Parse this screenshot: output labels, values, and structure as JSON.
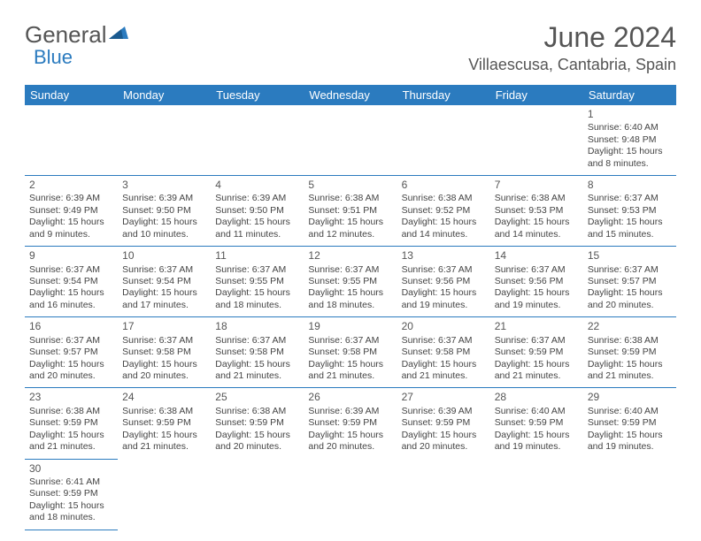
{
  "logo": {
    "text1": "General",
    "text2": "Blue"
  },
  "title": "June 2024",
  "location": "Villaescusa, Cantabria, Spain",
  "colors": {
    "accent": "#2b7bbf",
    "text": "#444",
    "heading": "#555",
    "bg": "#ffffff"
  },
  "daysOfWeek": [
    "Sunday",
    "Monday",
    "Tuesday",
    "Wednesday",
    "Thursday",
    "Friday",
    "Saturday"
  ],
  "startOffset": 6,
  "days": [
    {
      "n": 1,
      "sunrise": "6:40 AM",
      "sunset": "9:48 PM",
      "daylight": "15 hours and 8 minutes."
    },
    {
      "n": 2,
      "sunrise": "6:39 AM",
      "sunset": "9:49 PM",
      "daylight": "15 hours and 9 minutes."
    },
    {
      "n": 3,
      "sunrise": "6:39 AM",
      "sunset": "9:50 PM",
      "daylight": "15 hours and 10 minutes."
    },
    {
      "n": 4,
      "sunrise": "6:39 AM",
      "sunset": "9:50 PM",
      "daylight": "15 hours and 11 minutes."
    },
    {
      "n": 5,
      "sunrise": "6:38 AM",
      "sunset": "9:51 PM",
      "daylight": "15 hours and 12 minutes."
    },
    {
      "n": 6,
      "sunrise": "6:38 AM",
      "sunset": "9:52 PM",
      "daylight": "15 hours and 14 minutes."
    },
    {
      "n": 7,
      "sunrise": "6:38 AM",
      "sunset": "9:53 PM",
      "daylight": "15 hours and 14 minutes."
    },
    {
      "n": 8,
      "sunrise": "6:37 AM",
      "sunset": "9:53 PM",
      "daylight": "15 hours and 15 minutes."
    },
    {
      "n": 9,
      "sunrise": "6:37 AM",
      "sunset": "9:54 PM",
      "daylight": "15 hours and 16 minutes."
    },
    {
      "n": 10,
      "sunrise": "6:37 AM",
      "sunset": "9:54 PM",
      "daylight": "15 hours and 17 minutes."
    },
    {
      "n": 11,
      "sunrise": "6:37 AM",
      "sunset": "9:55 PM",
      "daylight": "15 hours and 18 minutes."
    },
    {
      "n": 12,
      "sunrise": "6:37 AM",
      "sunset": "9:55 PM",
      "daylight": "15 hours and 18 minutes."
    },
    {
      "n": 13,
      "sunrise": "6:37 AM",
      "sunset": "9:56 PM",
      "daylight": "15 hours and 19 minutes."
    },
    {
      "n": 14,
      "sunrise": "6:37 AM",
      "sunset": "9:56 PM",
      "daylight": "15 hours and 19 minutes."
    },
    {
      "n": 15,
      "sunrise": "6:37 AM",
      "sunset": "9:57 PM",
      "daylight": "15 hours and 20 minutes."
    },
    {
      "n": 16,
      "sunrise": "6:37 AM",
      "sunset": "9:57 PM",
      "daylight": "15 hours and 20 minutes."
    },
    {
      "n": 17,
      "sunrise": "6:37 AM",
      "sunset": "9:58 PM",
      "daylight": "15 hours and 20 minutes."
    },
    {
      "n": 18,
      "sunrise": "6:37 AM",
      "sunset": "9:58 PM",
      "daylight": "15 hours and 21 minutes."
    },
    {
      "n": 19,
      "sunrise": "6:37 AM",
      "sunset": "9:58 PM",
      "daylight": "15 hours and 21 minutes."
    },
    {
      "n": 20,
      "sunrise": "6:37 AM",
      "sunset": "9:58 PM",
      "daylight": "15 hours and 21 minutes."
    },
    {
      "n": 21,
      "sunrise": "6:37 AM",
      "sunset": "9:59 PM",
      "daylight": "15 hours and 21 minutes."
    },
    {
      "n": 22,
      "sunrise": "6:38 AM",
      "sunset": "9:59 PM",
      "daylight": "15 hours and 21 minutes."
    },
    {
      "n": 23,
      "sunrise": "6:38 AM",
      "sunset": "9:59 PM",
      "daylight": "15 hours and 21 minutes."
    },
    {
      "n": 24,
      "sunrise": "6:38 AM",
      "sunset": "9:59 PM",
      "daylight": "15 hours and 21 minutes."
    },
    {
      "n": 25,
      "sunrise": "6:38 AM",
      "sunset": "9:59 PM",
      "daylight": "15 hours and 20 minutes."
    },
    {
      "n": 26,
      "sunrise": "6:39 AM",
      "sunset": "9:59 PM",
      "daylight": "15 hours and 20 minutes."
    },
    {
      "n": 27,
      "sunrise": "6:39 AM",
      "sunset": "9:59 PM",
      "daylight": "15 hours and 20 minutes."
    },
    {
      "n": 28,
      "sunrise": "6:40 AM",
      "sunset": "9:59 PM",
      "daylight": "15 hours and 19 minutes."
    },
    {
      "n": 29,
      "sunrise": "6:40 AM",
      "sunset": "9:59 PM",
      "daylight": "15 hours and 19 minutes."
    },
    {
      "n": 30,
      "sunrise": "6:41 AM",
      "sunset": "9:59 PM",
      "daylight": "15 hours and 18 minutes."
    }
  ],
  "labels": {
    "sunrise": "Sunrise:",
    "sunset": "Sunset:",
    "daylight": "Daylight:"
  }
}
